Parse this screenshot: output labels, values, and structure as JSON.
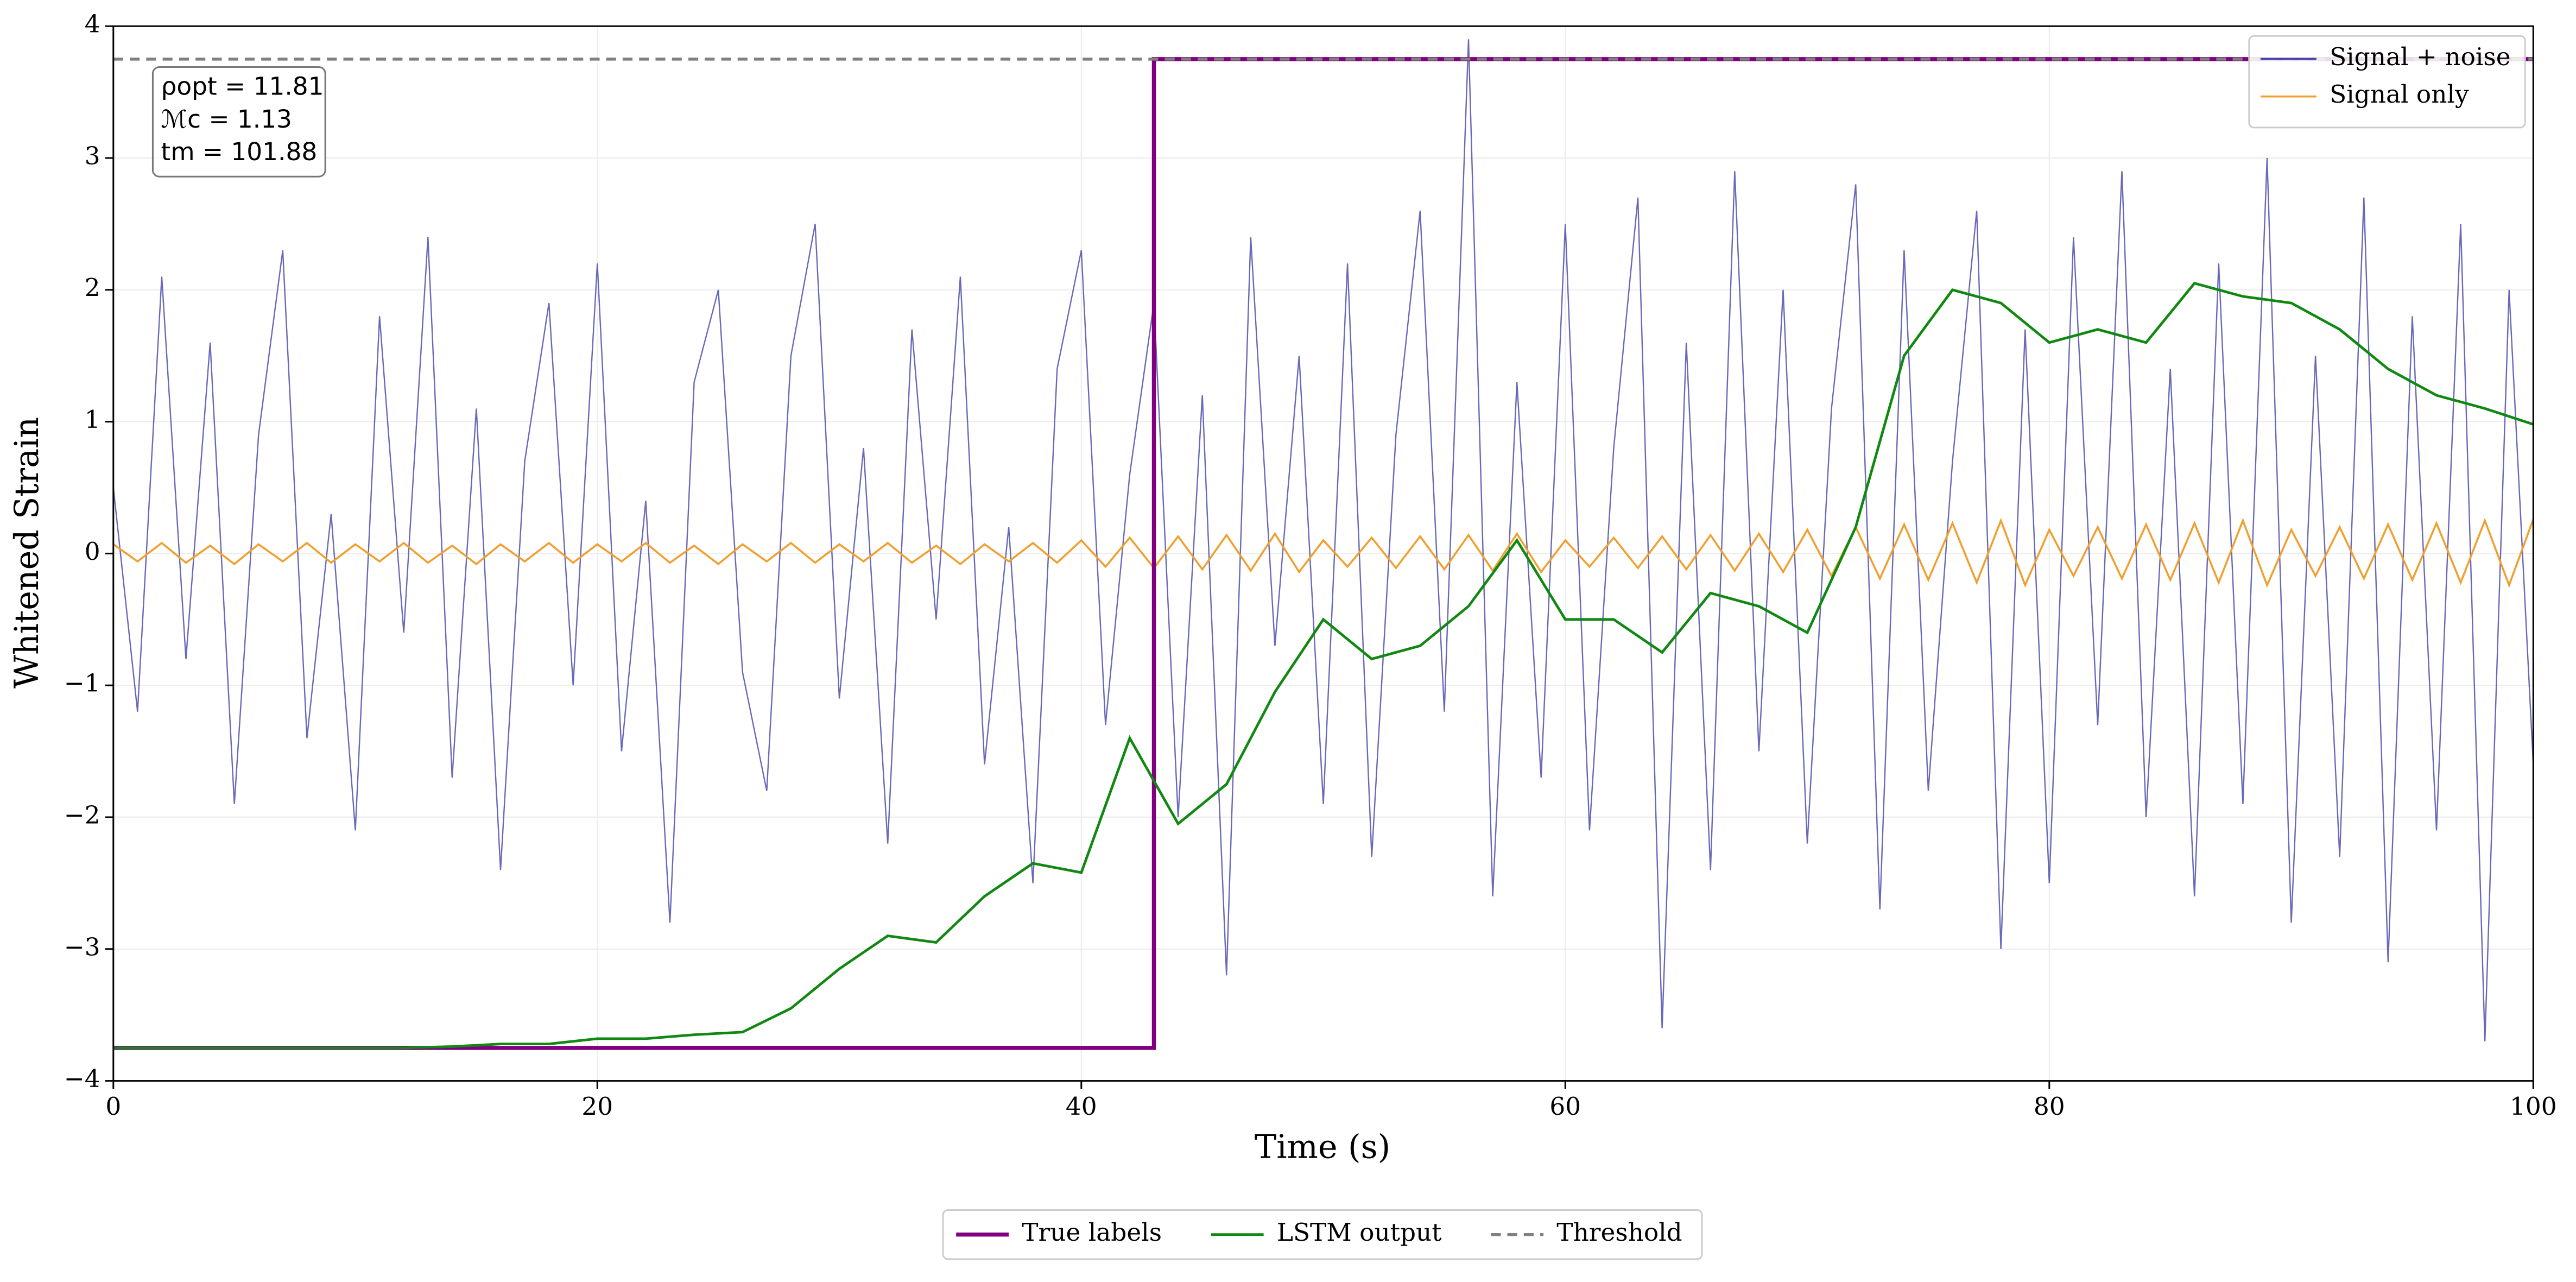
{
  "chart_data": {
    "type": "line",
    "xlabel": "Time (s)",
    "ylabel": "Whitened Strain",
    "xlim": [
      0,
      100
    ],
    "ylim": [
      -4,
      4
    ],
    "xticks": [
      0,
      20,
      40,
      60,
      80,
      100
    ],
    "yticks": [
      {
        "value": -4,
        "label": "−4"
      },
      {
        "value": -3,
        "label": "−3"
      },
      {
        "value": -2,
        "label": "−2"
      },
      {
        "value": -1,
        "label": "−1"
      },
      0,
      1,
      2,
      3,
      4
    ],
    "grid": true,
    "annotations": [
      "ρopt = 11.81",
      "ℳc = 1.13",
      "tm = 101.88"
    ],
    "x": [
      0,
      1,
      2,
      3,
      4,
      5,
      6,
      7,
      8,
      9,
      10,
      11,
      12,
      13,
      14,
      15,
      16,
      17,
      18,
      19,
      20,
      21,
      22,
      23,
      24,
      25,
      26,
      27,
      28,
      29,
      30,
      31,
      32,
      33,
      34,
      35,
      36,
      37,
      38,
      39,
      40,
      41,
      42,
      43,
      44,
      45,
      46,
      47,
      48,
      49,
      50,
      51,
      52,
      53,
      54,
      55,
      56,
      57,
      58,
      59,
      60,
      61,
      62,
      63,
      64,
      65,
      66,
      67,
      68,
      69,
      70,
      71,
      72,
      73,
      74,
      75,
      76,
      77,
      78,
      79,
      80,
      81,
      82,
      83,
      84,
      85,
      86,
      87,
      88,
      89,
      90,
      91,
      92,
      93,
      94,
      95,
      96,
      97,
      98,
      99,
      100
    ],
    "series": [
      {
        "name": "Signal + noise",
        "color": "#4444aa",
        "legend": "upper right",
        "width": 0.8,
        "values": [
          0.5,
          -1.2,
          2.1,
          -0.8,
          1.6,
          -1.9,
          0.9,
          2.3,
          -1.4,
          0.3,
          -2.1,
          1.8,
          -0.6,
          2.4,
          -1.7,
          1.1,
          -2.4,
          0.7,
          1.9,
          -1.0,
          2.2,
          -1.5,
          0.4,
          -2.8,
          1.3,
          2.0,
          -0.9,
          -1.8,
          1.5,
          2.5,
          -1.1,
          0.8,
          -2.2,
          1.7,
          -0.5,
          2.1,
          -1.6,
          0.2,
          -2.5,
          1.4,
          2.3,
          -1.3,
          0.6,
          1.9,
          -2.0,
          1.2,
          -3.2,
          2.4,
          -0.7,
          1.5,
          -1.9,
          2.2,
          -2.3,
          0.9,
          2.6,
          -1.2,
          3.9,
          -2.6,
          1.3,
          -1.7,
          2.5,
          -2.1,
          0.8,
          2.7,
          -3.6,
          1.6,
          -2.4,
          2.9,
          -1.5,
          2.0,
          -2.2,
          1.1,
          2.8,
          -2.7,
          2.3,
          -1.8,
          0.7,
          2.6,
          -3.0,
          1.7,
          -2.5,
          2.4,
          -1.3,
          2.9,
          -2.0,
          1.4,
          -2.6,
          2.2,
          -1.9,
          3.0,
          -2.8,
          1.5,
          -2.3,
          2.7,
          -3.1,
          1.8,
          -2.1,
          2.5,
          -3.7,
          2.0,
          -1.6
        ]
      },
      {
        "name": "Signal only",
        "color": "#f0a030",
        "legend": "upper right",
        "width": 1.2,
        "values": [
          0.07,
          -0.06,
          0.08,
          -0.07,
          0.06,
          -0.08,
          0.07,
          -0.06,
          0.08,
          -0.07,
          0.07,
          -0.06,
          0.08,
          -0.07,
          0.06,
          -0.08,
          0.07,
          -0.06,
          0.08,
          -0.07,
          0.07,
          -0.06,
          0.08,
          -0.07,
          0.06,
          -0.08,
          0.07,
          -0.06,
          0.08,
          -0.07,
          0.07,
          -0.06,
          0.08,
          -0.07,
          0.06,
          -0.08,
          0.07,
          -0.06,
          0.08,
          -0.07,
          0.1,
          -0.1,
          0.12,
          -0.11,
          0.13,
          -0.12,
          0.14,
          -0.13,
          0.15,
          -0.14,
          0.1,
          -0.1,
          0.12,
          -0.11,
          0.13,
          -0.12,
          0.14,
          -0.13,
          0.15,
          -0.14,
          0.1,
          -0.1,
          0.12,
          -0.11,
          0.13,
          -0.12,
          0.14,
          -0.13,
          0.15,
          -0.14,
          0.18,
          -0.17,
          0.2,
          -0.19,
          0.22,
          -0.2,
          0.23,
          -0.22,
          0.25,
          -0.24,
          0.18,
          -0.17,
          0.2,
          -0.19,
          0.22,
          -0.2,
          0.23,
          -0.22,
          0.25,
          -0.24,
          0.18,
          -0.17,
          0.2,
          -0.19,
          0.22,
          -0.2,
          0.23,
          -0.22,
          0.25,
          -0.24,
          0.26
        ]
      },
      {
        "name": "True labels",
        "color": "#800080",
        "legend": "below",
        "width": 2.5,
        "x": [
          0,
          43,
          43,
          100
        ],
        "values": [
          -3.75,
          -3.75,
          3.75,
          3.75
        ]
      },
      {
        "name": "LSTM output",
        "color": "#118811",
        "legend": "below",
        "width": 1.6,
        "x": [
          0,
          2,
          4,
          6,
          8,
          10,
          12,
          14,
          16,
          18,
          20,
          22,
          24,
          26,
          28,
          30,
          32,
          34,
          36,
          38,
          40,
          42,
          44,
          46,
          48,
          50,
          52,
          54,
          56,
          58,
          60,
          62,
          64,
          66,
          68,
          70,
          72,
          74,
          76,
          78,
          80,
          82,
          84,
          86,
          88,
          90,
          92,
          94,
          96,
          98,
          100
        ],
        "values": [
          -3.75,
          -3.75,
          -3.75,
          -3.75,
          -3.75,
          -3.75,
          -3.75,
          -3.74,
          -3.72,
          -3.72,
          -3.68,
          -3.68,
          -3.65,
          -3.63,
          -3.45,
          -3.15,
          -2.9,
          -2.95,
          -2.6,
          -2.35,
          -2.42,
          -1.4,
          -2.05,
          -1.75,
          -1.05,
          -0.5,
          -0.8,
          -0.7,
          -0.4,
          0.1,
          -0.5,
          -0.5,
          -0.75,
          -0.3,
          -0.4,
          -0.6,
          0.2,
          1.5,
          2.0,
          1.9,
          1.6,
          1.7,
          1.6,
          2.05,
          1.95,
          1.9,
          1.7,
          1.4,
          1.2,
          1.1,
          0.98
        ]
      },
      {
        "name": "Threshold",
        "color": "#808080",
        "legend": "below",
        "width": 1.8,
        "dash": true,
        "x": [
          0,
          100
        ],
        "values": [
          3.75,
          3.75
        ]
      }
    ]
  }
}
